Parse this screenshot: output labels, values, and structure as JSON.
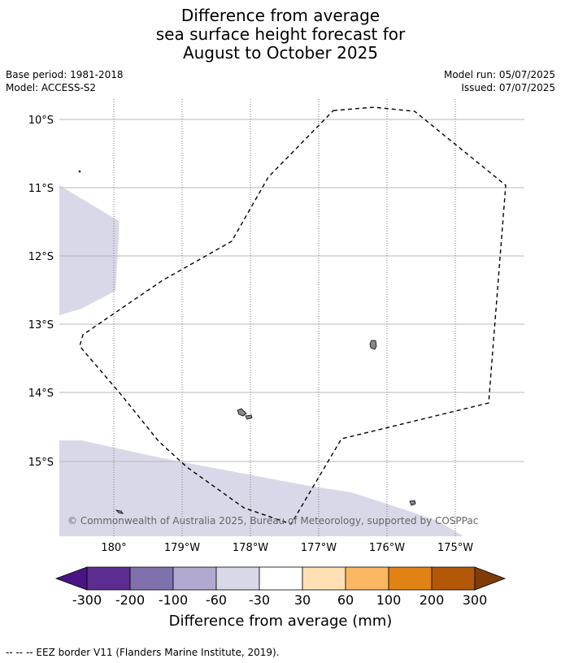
{
  "title": {
    "line1": "Difference from average",
    "line2": "sea surface height forecast for",
    "line3": "August to October 2025"
  },
  "meta": {
    "base_period": "Base period: 1981-2018",
    "model": "Model: ACCESS-S2",
    "model_run": "Model run: 05/07/2025",
    "issued": "Issued: 07/07/2025"
  },
  "map": {
    "lat_labels": [
      "10°S",
      "11°S",
      "12°S",
      "13°S",
      "14°S",
      "15°S"
    ],
    "lon_labels": [
      "180°",
      "179°W",
      "178°W",
      "177°W",
      "176°W",
      "175°W"
    ],
    "anomaly_fill_color": "#d8d8e8",
    "eez_border_style": "dashed",
    "copyright": "© Commonwealth of Australia 2025, Bureau of Meteorology, supported by COSPPac"
  },
  "colorbar": {
    "labels": [
      "-300",
      "-200",
      "-100",
      "-60",
      "-30",
      "30",
      "60",
      "100",
      "200",
      "300"
    ],
    "colors": [
      "#4a1486",
      "#5d2c90",
      "#8070ac",
      "#b1a9d0",
      "#d8d8e8",
      "#ffffff",
      "#fee0b4",
      "#fbb761",
      "#e08214",
      "#b35806",
      "#7f3b08"
    ],
    "title": "Difference from average (mm)"
  },
  "footer": {
    "legend_text": "--  --  -- EEZ border V11 (Flanders Marine Institute, 2019)."
  }
}
